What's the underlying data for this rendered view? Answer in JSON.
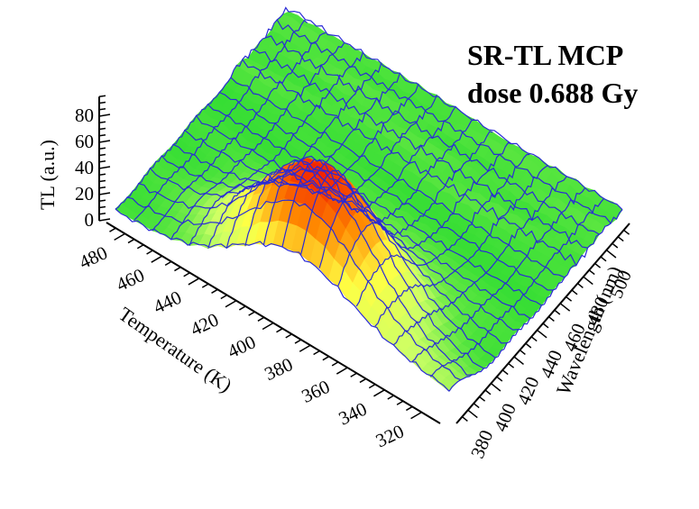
{
  "chart_data": {
    "type": "surface3d",
    "title": "SR-TL MCP",
    "subtitle": "dose 0.688 Gy",
    "zlabel": "TL (a.u.)",
    "xlabel": "Temperature (K)",
    "ylabel": "Wavelength (nm)",
    "z_ticks": [
      0,
      20,
      40,
      60,
      80
    ],
    "zlim": [
      0,
      95
    ],
    "temperature_ticks": [
      320,
      340,
      360,
      380,
      400,
      420,
      440,
      460,
      480
    ],
    "temperature_range": [
      310,
      490
    ],
    "wavelength_ticks": [
      380,
      400,
      420,
      440,
      460,
      480,
      500
    ],
    "wavelength_range": [
      370,
      520
    ],
    "peak": {
      "temperature": 395,
      "wavelength": 395,
      "tl": 90
    },
    "grid": true,
    "colormap": [
      "#33dd33",
      "#ccff66",
      "#ffff44",
      "#ff8800",
      "#ee1100"
    ]
  }
}
